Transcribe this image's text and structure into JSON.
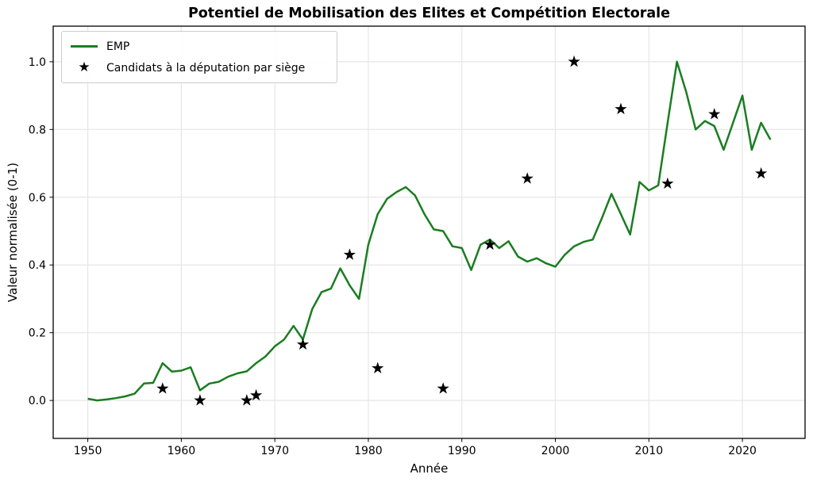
{
  "title": "Potentiel de Mobilisation des Elites et Compétition Electorale",
  "axes": {
    "xlabel": "Année",
    "ylabel": "Valeur normalisée (0-1)",
    "x_ticks": [
      1950,
      1960,
      1970,
      1980,
      1990,
      2000,
      2010,
      2020
    ],
    "y_ticks": [
      "0.0",
      "0.2",
      "0.4",
      "0.6",
      "0.8",
      "1.0"
    ],
    "y_tick_values": [
      0.0,
      0.2,
      0.4,
      0.6,
      0.8,
      1.0
    ]
  },
  "legend": {
    "items": [
      {
        "label": "EMP",
        "marker": "line",
        "color": "#1a7d21"
      },
      {
        "label": "Candidats à la députation par siège",
        "marker": "star",
        "color": "#000000"
      }
    ]
  },
  "chart_data": {
    "type": "line",
    "title": "Potentiel de Mobilisation des Elites et Compétition Electorale",
    "xlabel": "Année",
    "ylabel": "Valeur normalisée (0-1)",
    "xlim": [
      1946.3,
      2026.7
    ],
    "ylim": [
      -0.112,
      1.105
    ],
    "grid": true,
    "legend_position": "upper left",
    "series": [
      {
        "name": "EMP",
        "type": "line",
        "color": "#1a7d21",
        "x": [
          1950,
          1951,
          1952,
          1953,
          1954,
          1955,
          1956,
          1957,
          1958,
          1959,
          1960,
          1961,
          1962,
          1963,
          1964,
          1965,
          1966,
          1967,
          1968,
          1969,
          1970,
          1971,
          1972,
          1973,
          1974,
          1975,
          1976,
          1977,
          1978,
          1979,
          1980,
          1981,
          1982,
          1983,
          1984,
          1985,
          1986,
          1987,
          1988,
          1989,
          1990,
          1991,
          1992,
          1993,
          1994,
          1995,
          1996,
          1997,
          1998,
          1999,
          2000,
          2001,
          2002,
          2003,
          2004,
          2005,
          2006,
          2007,
          2008,
          2009,
          2010,
          2011,
          2012,
          2013,
          2014,
          2015,
          2016,
          2017,
          2018,
          2019,
          2020,
          2021,
          2022,
          2023
        ],
        "y": [
          0.005,
          0.0,
          0.003,
          0.007,
          0.012,
          0.02,
          0.05,
          0.052,
          0.11,
          0.085,
          0.088,
          0.098,
          0.03,
          0.05,
          0.055,
          0.07,
          0.08,
          0.086,
          0.11,
          0.13,
          0.16,
          0.18,
          0.22,
          0.18,
          0.27,
          0.32,
          0.33,
          0.39,
          0.34,
          0.3,
          0.46,
          0.55,
          0.595,
          0.615,
          0.63,
          0.605,
          0.55,
          0.505,
          0.5,
          0.455,
          0.45,
          0.385,
          0.46,
          0.475,
          0.45,
          0.47,
          0.425,
          0.41,
          0.42,
          0.405,
          0.395,
          0.43,
          0.455,
          0.468,
          0.475,
          0.54,
          0.61,
          0.55,
          0.49,
          0.645,
          0.62,
          0.635,
          0.82,
          1.0,
          0.91,
          0.8,
          0.825,
          0.81,
          0.74,
          0.82,
          0.9,
          0.74,
          0.82,
          0.77
        ]
      },
      {
        "name": "Candidats à la députation par siège",
        "type": "scatter",
        "marker": "star",
        "color": "#000000",
        "x": [
          1958,
          1962,
          1967,
          1968,
          1973,
          1978,
          1981,
          1988,
          1993,
          1997,
          2002,
          2007,
          2012,
          2017,
          2022
        ],
        "y": [
          0.035,
          0.0,
          0.0,
          0.015,
          0.165,
          0.43,
          0.095,
          0.035,
          0.46,
          0.655,
          1.0,
          0.86,
          0.64,
          0.845,
          0.67
        ]
      }
    ]
  }
}
